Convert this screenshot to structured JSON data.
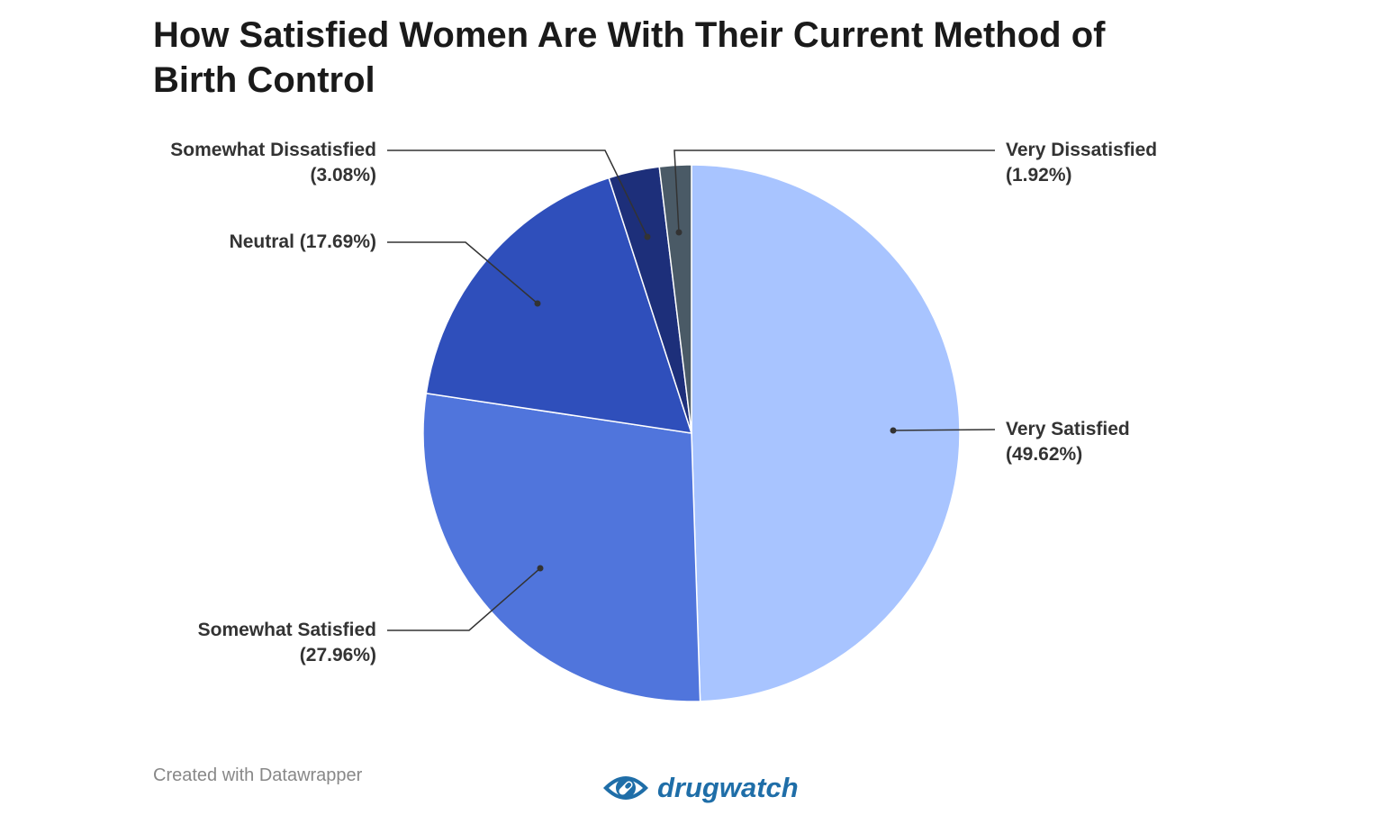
{
  "chart_data": {
    "type": "pie",
    "title": "How Satisfied Women Are With Their Current Method of Birth Control",
    "start_angle": "top",
    "direction": "clockwise",
    "slices": [
      {
        "label": "Very Satisfied",
        "value": 49.62,
        "display": "(49.62%)",
        "color": "#a8c4ff"
      },
      {
        "label": "Somewhat Satisfied",
        "value": 27.96,
        "display": "(27.96%)",
        "color": "#5075dc"
      },
      {
        "label": "Neutral",
        "value": 17.69,
        "display": "(17.69%)",
        "color": "#2f4fbb"
      },
      {
        "label": "Somewhat Dissatisfied",
        "value": 3.08,
        "display": "(3.08%)",
        "color": "#1d2f7a"
      },
      {
        "label": "Very Dissatisfied",
        "value": 1.92,
        "display": "(1.92%)",
        "color": "#4a5a66"
      }
    ]
  },
  "footer": {
    "credit": "Created with Datawrapper",
    "logo_text": "drugwatch",
    "logo_color": "#1f6ea8"
  }
}
